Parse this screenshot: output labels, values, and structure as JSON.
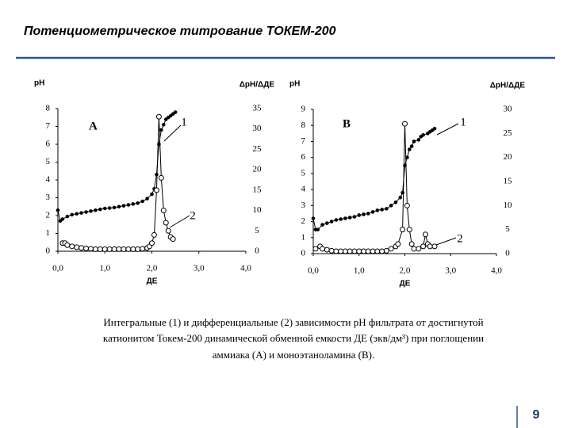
{
  "title": "Потенциометрическое титрование ТОКЕМ-200",
  "caption": [
    "Интегральные (1) и дифференциальные (2) зависимости pH фильтрата от достигнутой",
    "катионитом Токем-200 динамической обменной емкости ДЕ (экв/дм³) при поглощении",
    "аммиака (А) и моноэтаноламина (B)."
  ],
  "page_number": "9",
  "chart_data": [
    {
      "type": "line",
      "label": "A",
      "y_label": "pH",
      "y2_label": "ΔpH/ΔДЕ",
      "x_label": "ДЕ",
      "xlim": [
        0,
        4
      ],
      "xticks": [
        {
          "value": 0,
          "label": "0,0"
        },
        {
          "value": 1,
          "label": "1,0"
        },
        {
          "value": 2,
          "label": "2,0"
        },
        {
          "value": 3,
          "label": "3,0"
        },
        {
          "value": 4,
          "label": "4,0"
        }
      ],
      "ylim": [
        0,
        8
      ],
      "yticks": [
        0,
        1,
        2,
        3,
        4,
        5,
        6,
        7,
        8
      ],
      "y2lim": [
        0,
        35
      ],
      "y2ticks": [
        0,
        5,
        10,
        15,
        20,
        25,
        30,
        35
      ],
      "series": [
        {
          "name": "1",
          "color": "#000000",
          "marker": "filled",
          "x": [
            0.0,
            0.05,
            0.1,
            0.2,
            0.3,
            0.4,
            0.5,
            0.6,
            0.7,
            0.8,
            0.9,
            1.0,
            1.1,
            1.2,
            1.3,
            1.4,
            1.5,
            1.6,
            1.7,
            1.8,
            1.9,
            2.0,
            2.05,
            2.1,
            2.15,
            2.2,
            2.25,
            2.3,
            2.35,
            2.4,
            2.45,
            2.5
          ],
          "values": [
            2.3,
            1.7,
            1.8,
            1.95,
            2.05,
            2.1,
            2.15,
            2.2,
            2.25,
            2.3,
            2.35,
            2.4,
            2.42,
            2.45,
            2.5,
            2.55,
            2.6,
            2.65,
            2.7,
            2.8,
            2.95,
            3.2,
            3.5,
            4.3,
            6.0,
            6.8,
            7.1,
            7.4,
            7.5,
            7.6,
            7.7,
            7.8
          ]
        },
        {
          "name": "2",
          "color": "#000000",
          "marker": "open",
          "axis": "y2",
          "x": [
            0.1,
            0.15,
            0.2,
            0.3,
            0.4,
            0.5,
            0.6,
            0.7,
            0.8,
            0.9,
            1.0,
            1.1,
            1.2,
            1.3,
            1.4,
            1.5,
            1.6,
            1.7,
            1.8,
            1.9,
            1.95,
            2.0,
            2.05,
            2.1,
            2.15,
            2.2,
            2.25,
            2.3,
            2.35,
            2.4,
            2.45
          ],
          "values": [
            2,
            2,
            1.5,
            1.2,
            1,
            0.8,
            0.7,
            0.6,
            0.5,
            0.5,
            0.5,
            0.5,
            0.5,
            0.5,
            0.5,
            0.5,
            0.5,
            0.5,
            0.6,
            0.8,
            1.2,
            2,
            4,
            15,
            33,
            18,
            10,
            7,
            5,
            3.5,
            3
          ]
        }
      ]
    },
    {
      "type": "line",
      "label": "B",
      "y_label": "pH",
      "y2_label": "ΔpH/ΔДЕ",
      "x_label": "ДЕ",
      "xlim": [
        0,
        4
      ],
      "xticks": [
        {
          "value": 0,
          "label": "0,0"
        },
        {
          "value": 1,
          "label": "1,0"
        },
        {
          "value": 2,
          "label": "2,0"
        },
        {
          "value": 3,
          "label": "3,0"
        },
        {
          "value": 4,
          "label": "4,0"
        }
      ],
      "ylim": [
        0,
        9
      ],
      "yticks": [
        0,
        1,
        2,
        3,
        4,
        5,
        6,
        7,
        8,
        9
      ],
      "y2lim": [
        0,
        30
      ],
      "y2ticks": [
        0,
        5,
        10,
        15,
        20,
        25,
        30
      ],
      "series": [
        {
          "name": "1",
          "color": "#000000",
          "marker": "filled",
          "x": [
            0.0,
            0.05,
            0.1,
            0.2,
            0.3,
            0.4,
            0.5,
            0.6,
            0.7,
            0.8,
            0.9,
            1.0,
            1.1,
            1.2,
            1.3,
            1.4,
            1.5,
            1.6,
            1.7,
            1.8,
            1.9,
            1.95,
            2.0,
            2.05,
            2.1,
            2.15,
            2.2,
            2.3,
            2.35,
            2.4,
            2.5,
            2.55,
            2.6,
            2.65
          ],
          "values": [
            2.2,
            1.5,
            1.5,
            1.8,
            1.9,
            2.0,
            2.1,
            2.15,
            2.2,
            2.25,
            2.3,
            2.4,
            2.45,
            2.5,
            2.6,
            2.7,
            2.75,
            2.8,
            3.0,
            3.2,
            3.5,
            3.8,
            5.5,
            6.0,
            6.5,
            6.7,
            7.0,
            7.1,
            7.3,
            7.4,
            7.5,
            7.6,
            7.7,
            7.8
          ]
        },
        {
          "name": "2",
          "color": "#000000",
          "marker": "open",
          "axis": "y2",
          "x": [
            0.05,
            0.15,
            0.2,
            0.3,
            0.4,
            0.5,
            0.6,
            0.7,
            0.8,
            0.9,
            1.0,
            1.1,
            1.2,
            1.3,
            1.4,
            1.5,
            1.6,
            1.7,
            1.8,
            1.85,
            1.95,
            2.0,
            2.05,
            2.1,
            2.15,
            2.2,
            2.3,
            2.4,
            2.45,
            2.5,
            2.55,
            2.65
          ],
          "values": [
            1,
            1.5,
            1,
            0.8,
            0.6,
            0.5,
            0.5,
            0.5,
            0.5,
            0.5,
            0.5,
            0.5,
            0.5,
            0.5,
            0.5,
            0.5,
            0.6,
            1,
            1.5,
            2,
            5,
            27,
            10,
            5,
            2,
            1,
            1,
            1.5,
            4,
            2,
            1.5,
            1.5
          ]
        }
      ]
    }
  ]
}
